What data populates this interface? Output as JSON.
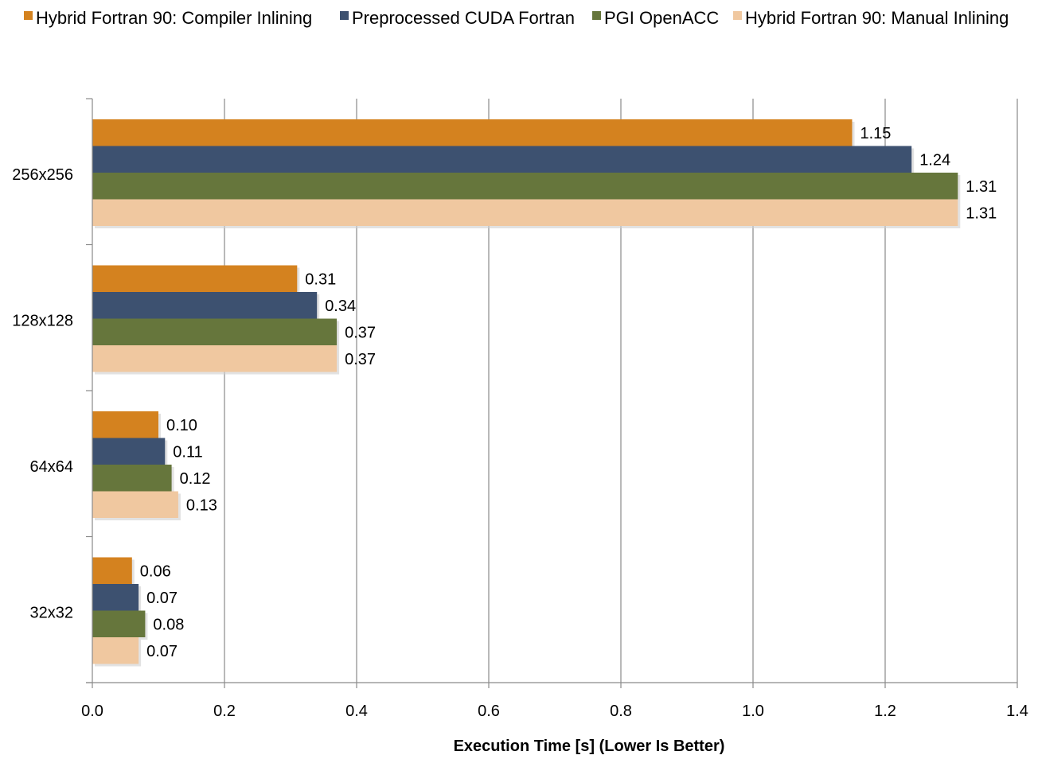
{
  "chart_data": {
    "type": "bar",
    "orientation": "horizontal",
    "categories": [
      "256x256",
      "128x128",
      "64x64",
      "32x32"
    ],
    "series": [
      {
        "name": "Hybrid Fortran 90: Compiler Inlining",
        "color": "#d4821f",
        "values": [
          1.15,
          0.31,
          0.1,
          0.06
        ],
        "labels": [
          "1.15",
          "0.31",
          "0.10",
          "0.06"
        ]
      },
      {
        "name": "Preprocessed CUDA Fortran",
        "color": "#3d5170",
        "values": [
          1.24,
          0.34,
          0.11,
          0.07
        ],
        "labels": [
          "1.24",
          "0.34",
          "0.11",
          "0.07"
        ]
      },
      {
        "name": "PGI OpenACC",
        "color": "#66763c",
        "values": [
          1.31,
          0.37,
          0.12,
          0.08
        ],
        "labels": [
          "1.31",
          "0.37",
          "0.12",
          "0.08"
        ]
      },
      {
        "name": "Hybrid Fortran 90: Manual Inlining",
        "color": "#f0c8a0",
        "values": [
          1.31,
          0.37,
          0.13,
          0.07
        ],
        "labels": [
          "1.31",
          "0.37",
          "0.13",
          "0.07"
        ]
      }
    ],
    "xlabel": "Execution Time [s] (Lower Is Better)",
    "ylabel": "",
    "xlim": [
      0,
      1.4
    ],
    "xticks": [
      0,
      0.2,
      0.4,
      0.6,
      0.8,
      1.0,
      1.2,
      1.4
    ],
    "xtick_labels": [
      "0.0",
      "0.2",
      "0.4",
      "0.6",
      "0.8",
      "1.0",
      "1.2",
      "1.4"
    ],
    "grid": "vertical",
    "legend": "top"
  }
}
